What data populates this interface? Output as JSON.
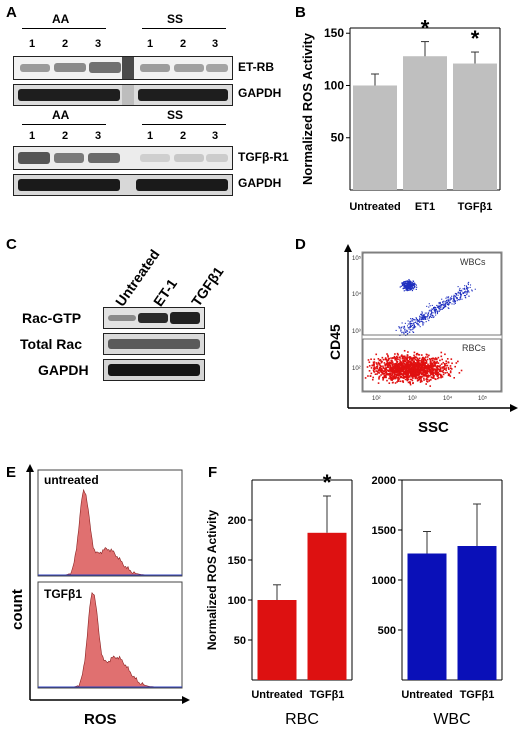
{
  "panels": {
    "A": {
      "letter": "A",
      "blot1": {
        "groups": [
          {
            "label": "AA"
          },
          {
            "label": "SS"
          }
        ],
        "lanes": [
          "1",
          "2",
          "3"
        ],
        "rows": [
          {
            "label": "ET-RB"
          },
          {
            "label": "GAPDH"
          }
        ]
      },
      "blot2": {
        "groups": [
          {
            "label": "AA"
          },
          {
            "label": "SS"
          }
        ],
        "lanes": [
          "1",
          "2",
          "3"
        ],
        "rows": [
          {
            "label": "TGFβ-R1"
          },
          {
            "label": "GAPDH"
          }
        ]
      }
    },
    "B": {
      "letter": "B",
      "chart_data": {
        "type": "bar",
        "categories": [
          "Untreated",
          "ET1",
          "TGFβ1"
        ],
        "values": [
          100,
          128,
          121
        ],
        "errors": [
          11,
          14,
          11
        ],
        "significance": [
          "",
          "*",
          "*"
        ],
        "ylabel": "Normalized ROS Activity",
        "yticks": [
          50,
          100,
          150
        ],
        "ylim": [
          0,
          155
        ],
        "bar_color": "#bfbfbf",
        "grid": false
      }
    },
    "C": {
      "letter": "C",
      "columns": [
        "Untreated",
        "ET-1",
        "TGFβ1"
      ],
      "rows": [
        {
          "label": "Rac-GTP"
        },
        {
          "label": "Total Rac"
        },
        {
          "label": "GAPDH"
        }
      ]
    },
    "D": {
      "letter": "D",
      "chart_data": {
        "type": "scatter",
        "xlabel": "SSC",
        "ylabel": "CD45",
        "x_scale": "log",
        "y_scale": "log",
        "xticks": [
          "10²",
          "10³",
          "10⁴",
          "10⁵"
        ],
        "yticks": [
          "10²",
          "10³",
          "10⁴",
          "10⁵"
        ],
        "gates": [
          {
            "name": "WBCs",
            "color": "#1f2fbf"
          },
          {
            "name": "RBCs",
            "color": "#e01010"
          }
        ]
      }
    },
    "E": {
      "letter": "E",
      "histograms": [
        {
          "label": "untreated"
        },
        {
          "label": "TGFβ1"
        }
      ],
      "xlabel": "ROS",
      "ylabel": "count",
      "fill_color": "#e07070"
    },
    "F": {
      "letter": "F",
      "chart_data": [
        {
          "type": "bar",
          "categories": [
            "Untreated",
            "TGFβ1"
          ],
          "values": [
            100,
            184
          ],
          "errors": [
            19,
            46
          ],
          "significance": [
            "",
            "*"
          ],
          "ylabel": "Normalized ROS Activity",
          "xlabel": "RBC",
          "yticks": [
            50,
            100,
            150,
            200
          ],
          "ylim": [
            0,
            250
          ],
          "bar_color": "#dd1111"
        },
        {
          "type": "bar",
          "categories": [
            "Untreated",
            "TGFβ1"
          ],
          "values": [
            1265,
            1340
          ],
          "errors": [
            220,
            420
          ],
          "significance": [
            "",
            ""
          ],
          "ylabel": "",
          "xlabel": "WBC",
          "yticks": [
            500,
            1000,
            1500,
            2000
          ],
          "ylim": [
            0,
            2000
          ],
          "bar_color": "#0a10b8"
        }
      ]
    }
  }
}
